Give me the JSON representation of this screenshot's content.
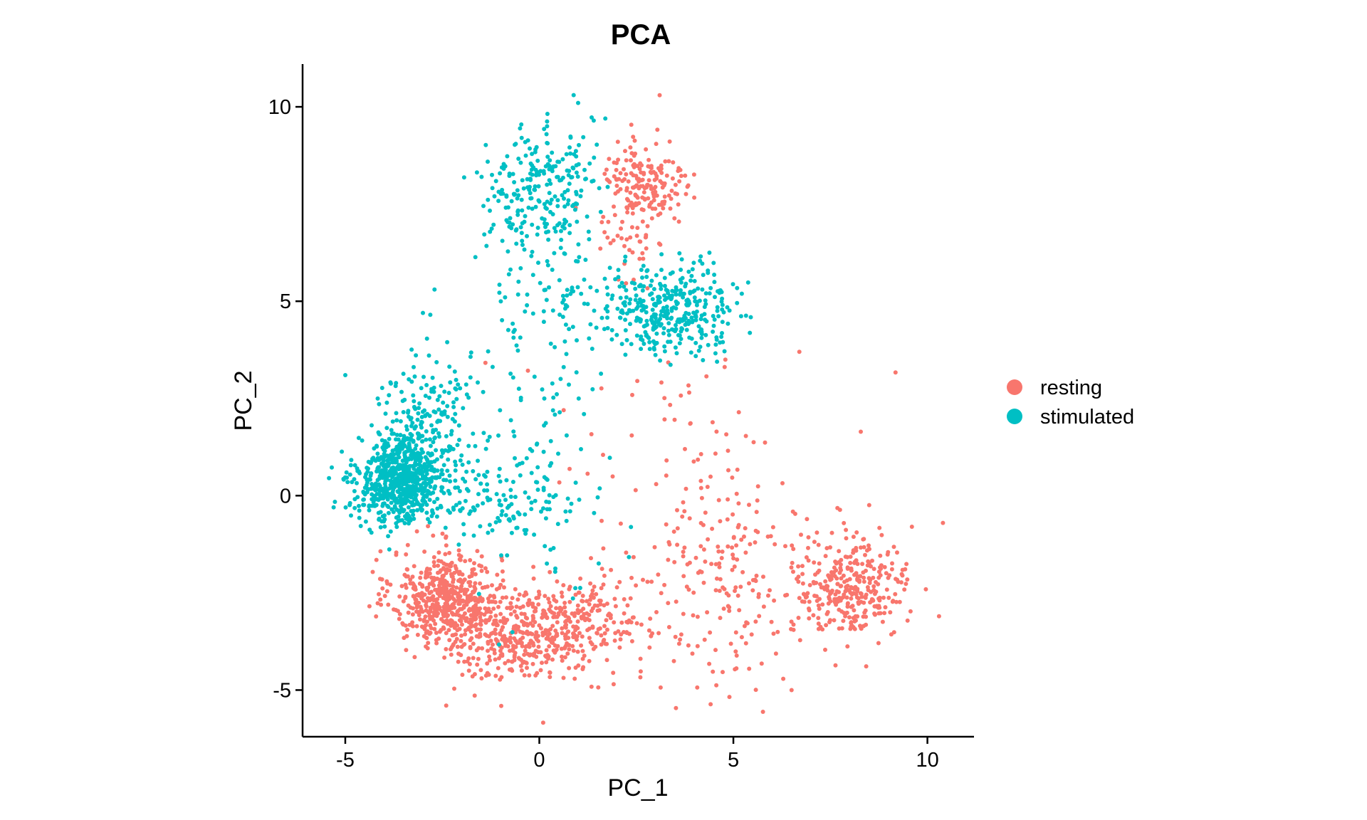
{
  "chart_data": {
    "type": "scatter",
    "title": "PCA",
    "xlabel": "PC_1",
    "ylabel": "PC_2",
    "xlim": [
      -6.1,
      11.2
    ],
    "ylim": [
      -6.2,
      11.1
    ],
    "x_ticks": [
      -5,
      0,
      5,
      10
    ],
    "x_tick_labels": [
      "-5",
      "0",
      "5",
      "10"
    ],
    "y_ticks": [
      -5,
      0,
      5,
      10
    ],
    "y_tick_labels": [
      "-5",
      "0",
      "5",
      "10"
    ],
    "grid": false,
    "legend": {
      "position": "right"
    },
    "series": [
      {
        "name": "resting",
        "color": "#F8766D",
        "clusters": [
          {
            "center": [
              -2.4,
              -2.6
            ],
            "sd": [
              0.7,
              0.6
            ],
            "n": 520
          },
          {
            "center": [
              -0.8,
              -3.6
            ],
            "sd": [
              0.9,
              0.55
            ],
            "n": 320
          },
          {
            "center": [
              1.0,
              -3.3
            ],
            "sd": [
              0.9,
              0.6
            ],
            "n": 250
          },
          {
            "center": [
              8.0,
              -2.4
            ],
            "sd": [
              0.75,
              0.65
            ],
            "n": 330
          },
          {
            "center": [
              4.8,
              -2.2
            ],
            "sd": [
              1.2,
              1.3
            ],
            "n": 190
          },
          {
            "center": [
              3.5,
              1.2
            ],
            "sd": [
              1.8,
              1.4
            ],
            "n": 60
          },
          {
            "center": [
              2.7,
              8.0
            ],
            "sd": [
              0.55,
              0.6
            ],
            "n": 180
          },
          {
            "center": [
              2.3,
              6.2
            ],
            "sd": [
              0.5,
              0.6
            ],
            "n": 35
          }
        ],
        "points": [
          [
            3.1,
            10.3
          ],
          [
            6.5,
            -5.0
          ],
          [
            -2.4,
            -5.4
          ],
          [
            10.4,
            -0.7
          ],
          [
            6.7,
            3.7
          ],
          [
            10.3,
            -3.1
          ],
          [
            9.6,
            -0.8
          ]
        ]
      },
      {
        "name": "stimulated",
        "color": "#00BFC4",
        "clusters": [
          {
            "center": [
              -3.6,
              0.4
            ],
            "sd": [
              0.55,
              0.55
            ],
            "n": 700
          },
          {
            "center": [
              -2.9,
              1.9
            ],
            "sd": [
              0.6,
              1.0
            ],
            "n": 200
          },
          {
            "center": [
              -1.0,
              0.0
            ],
            "sd": [
              0.9,
              0.6
            ],
            "n": 120
          },
          {
            "center": [
              0.0,
              7.9
            ],
            "sd": [
              0.7,
              0.8
            ],
            "n": 230
          },
          {
            "center": [
              0.1,
              5.3
            ],
            "sd": [
              0.7,
              1.0
            ],
            "n": 90
          },
          {
            "center": [
              3.4,
              4.8
            ],
            "sd": [
              0.9,
              0.55
            ],
            "n": 380
          },
          {
            "center": [
              0.2,
              0.8
            ],
            "sd": [
              1.0,
              1.7
            ],
            "n": 70
          }
        ],
        "points": [
          [
            1.0,
            10.1
          ],
          [
            1.7,
            9.7
          ],
          [
            0.2,
            9.5
          ],
          [
            -5.3,
            -0.3
          ],
          [
            -5.0,
            3.1
          ],
          [
            -3.0,
            4.7
          ],
          [
            -2.7,
            5.3
          ]
        ]
      }
    ]
  }
}
